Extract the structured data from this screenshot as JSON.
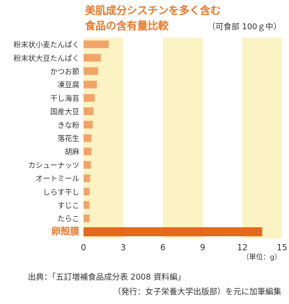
{
  "chart_data": {
    "type": "bar",
    "orientation": "horizontal",
    "title_lines": [
      "美肌成分シスチンを多く含む",
      "食品の含有量比較"
    ],
    "subtitle": "（可食部 100ｇ中）",
    "categories": [
      "粉末状小麦たんぱく",
      "粉末状大豆たんぱく",
      "かつお節",
      "凍豆腐",
      "干し海苔",
      "国産大豆",
      "きな粉",
      "落花生",
      "胡麻",
      "カシューナッツ",
      "オートミール",
      "しらす干し",
      "すじこ",
      "たらこ",
      "卵殻膜"
    ],
    "values": [
      1.9,
      1.3,
      1.1,
      1.0,
      0.85,
      0.75,
      0.7,
      0.6,
      0.6,
      0.55,
      0.5,
      0.45,
      0.45,
      0.45,
      13.5
    ],
    "highlight_category": "卵殻膜",
    "xlim": [
      0,
      15
    ],
    "xticks": [
      0,
      3,
      6,
      9,
      12,
      15
    ],
    "unit_label": "（単位：g）",
    "source_lines": [
      "出典：「五訂増補食品成分表 2008 資料編」",
      "（発行：女子栄養大学出版部）を元に加筆編集"
    ],
    "colors": {
      "title": "#e8782a",
      "bar": "#f2a468",
      "highlight_bar": "#e06a1e",
      "highlight_label": "#e8782a",
      "band": "#fcf3c4",
      "text": "#333333"
    }
  }
}
